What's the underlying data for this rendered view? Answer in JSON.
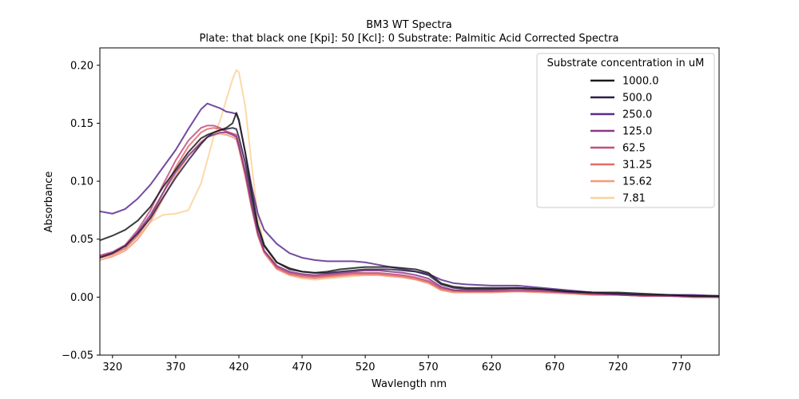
{
  "chart_data": {
    "type": "line",
    "title": "BM3 WT Spectra",
    "subtitle": "Plate: that black one  [Kpi]: 50  [Kcl]: 0  Substrate: Palmitic Acid Corrected Spectra",
    "xlabel": "Wavlength nm",
    "ylabel": "Absorbance",
    "xlim": [
      310,
      800
    ],
    "ylim": [
      -0.05,
      0.215
    ],
    "xticks": [
      320,
      370,
      420,
      470,
      520,
      570,
      620,
      670,
      720,
      770
    ],
    "yticks": [
      -0.05,
      0.0,
      0.05,
      0.1,
      0.15,
      0.2
    ],
    "xtick_labels": [
      "320",
      "370",
      "420",
      "470",
      "520",
      "570",
      "620",
      "670",
      "720",
      "770"
    ],
    "ytick_labels": [
      "−0.05",
      "0.00",
      "0.05",
      "0.10",
      "0.15",
      "0.20"
    ],
    "grid": false,
    "legend_title": "Substrate concentration in uM",
    "legend_position": "top-right",
    "x": [
      310,
      320,
      330,
      340,
      350,
      360,
      370,
      380,
      390,
      395,
      400,
      405,
      410,
      415,
      418,
      420,
      425,
      430,
      435,
      440,
      450,
      460,
      470,
      480,
      490,
      500,
      510,
      520,
      530,
      540,
      550,
      560,
      570,
      580,
      590,
      600,
      620,
      640,
      660,
      680,
      700,
      720,
      740,
      760,
      780,
      800
    ],
    "series": [
      {
        "name": "1000.0",
        "color": "#1a1a1a",
        "values": [
          0.049,
          0.053,
          0.058,
          0.066,
          0.078,
          0.095,
          0.11,
          0.125,
          0.137,
          0.14,
          0.142,
          0.144,
          0.146,
          0.15,
          0.159,
          0.153,
          0.125,
          0.092,
          0.062,
          0.045,
          0.03,
          0.025,
          0.022,
          0.021,
          0.022,
          0.024,
          0.025,
          0.026,
          0.026,
          0.026,
          0.025,
          0.024,
          0.021,
          0.012,
          0.009,
          0.008,
          0.008,
          0.008,
          0.007,
          0.005,
          0.004,
          0.004,
          0.003,
          0.002,
          0.001,
          0.001
        ]
      },
      {
        "name": "500.0",
        "color": "#2b2043",
        "values": [
          0.034,
          0.038,
          0.044,
          0.055,
          0.068,
          0.086,
          0.103,
          0.118,
          0.132,
          0.138,
          0.142,
          0.144,
          0.145,
          0.146,
          0.145,
          0.138,
          0.116,
          0.087,
          0.06,
          0.044,
          0.03,
          0.024,
          0.022,
          0.021,
          0.021,
          0.022,
          0.023,
          0.024,
          0.024,
          0.024,
          0.023,
          0.022,
          0.019,
          0.011,
          0.008,
          0.007,
          0.007,
          0.008,
          0.007,
          0.005,
          0.004,
          0.003,
          0.002,
          0.002,
          0.001,
          0.001
        ]
      },
      {
        "name": "250.0",
        "color": "#5b2c8f",
        "values": [
          0.074,
          0.072,
          0.076,
          0.085,
          0.097,
          0.112,
          0.127,
          0.145,
          0.162,
          0.167,
          0.165,
          0.163,
          0.16,
          0.159,
          0.158,
          0.152,
          0.125,
          0.096,
          0.072,
          0.058,
          0.046,
          0.038,
          0.034,
          0.032,
          0.031,
          0.031,
          0.031,
          0.03,
          0.028,
          0.026,
          0.024,
          0.022,
          0.02,
          0.015,
          0.012,
          0.011,
          0.01,
          0.01,
          0.008,
          0.006,
          0.004,
          0.003,
          0.002,
          0.002,
          0.002,
          0.001
        ]
      },
      {
        "name": "125.0",
        "color": "#8a3a87",
        "values": [
          0.035,
          0.038,
          0.044,
          0.056,
          0.071,
          0.09,
          0.108,
          0.122,
          0.133,
          0.138,
          0.14,
          0.142,
          0.142,
          0.14,
          0.138,
          0.13,
          0.108,
          0.08,
          0.055,
          0.04,
          0.027,
          0.022,
          0.02,
          0.019,
          0.02,
          0.021,
          0.022,
          0.023,
          0.023,
          0.022,
          0.021,
          0.019,
          0.016,
          0.009,
          0.006,
          0.006,
          0.006,
          0.007,
          0.006,
          0.004,
          0.003,
          0.002,
          0.002,
          0.001,
          0.001,
          0.0
        ]
      },
      {
        "name": "62.5",
        "color": "#c04f7f",
        "values": [
          0.036,
          0.039,
          0.045,
          0.058,
          0.075,
          0.097,
          0.118,
          0.135,
          0.146,
          0.148,
          0.148,
          0.146,
          0.143,
          0.141,
          0.14,
          0.132,
          0.108,
          0.08,
          0.055,
          0.04,
          0.026,
          0.021,
          0.019,
          0.018,
          0.019,
          0.02,
          0.021,
          0.021,
          0.021,
          0.02,
          0.019,
          0.017,
          0.014,
          0.008,
          0.006,
          0.005,
          0.005,
          0.006,
          0.005,
          0.004,
          0.003,
          0.002,
          0.001,
          0.001,
          0.0,
          0.0
        ]
      },
      {
        "name": "31.25",
        "color": "#e06a6b",
        "values": [
          0.034,
          0.037,
          0.042,
          0.053,
          0.069,
          0.09,
          0.112,
          0.13,
          0.142,
          0.145,
          0.146,
          0.145,
          0.143,
          0.141,
          0.139,
          0.131,
          0.106,
          0.078,
          0.054,
          0.039,
          0.025,
          0.02,
          0.018,
          0.017,
          0.018,
          0.019,
          0.02,
          0.02,
          0.02,
          0.019,
          0.018,
          0.016,
          0.013,
          0.007,
          0.005,
          0.005,
          0.005,
          0.005,
          0.005,
          0.004,
          0.002,
          0.002,
          0.001,
          0.001,
          0.0,
          0.0
        ]
      },
      {
        "name": "15.62",
        "color": "#f59a76",
        "values": [
          0.032,
          0.035,
          0.04,
          0.05,
          0.065,
          0.085,
          0.105,
          0.122,
          0.134,
          0.138,
          0.14,
          0.141,
          0.14,
          0.138,
          0.136,
          0.128,
          0.104,
          0.077,
          0.053,
          0.038,
          0.024,
          0.019,
          0.017,
          0.016,
          0.017,
          0.018,
          0.019,
          0.019,
          0.019,
          0.018,
          0.017,
          0.015,
          0.012,
          0.006,
          0.004,
          0.004,
          0.004,
          0.005,
          0.004,
          0.003,
          0.002,
          0.002,
          0.001,
          0.001,
          0.0,
          0.0
        ]
      },
      {
        "name": "7.81",
        "color": "#fbd29a",
        "values": [
          0.034,
          0.036,
          0.042,
          0.053,
          0.065,
          0.071,
          0.072,
          0.075,
          0.098,
          0.118,
          0.138,
          0.152,
          0.17,
          0.188,
          0.196,
          0.194,
          0.165,
          0.115,
          0.07,
          0.045,
          0.027,
          0.019,
          0.016,
          0.015,
          0.016,
          0.017,
          0.018,
          0.019,
          0.019,
          0.018,
          0.017,
          0.015,
          0.012,
          0.006,
          0.004,
          0.004,
          0.004,
          0.005,
          0.004,
          0.003,
          0.003,
          0.002,
          0.002,
          0.002,
          0.001,
          0.001
        ]
      }
    ]
  }
}
